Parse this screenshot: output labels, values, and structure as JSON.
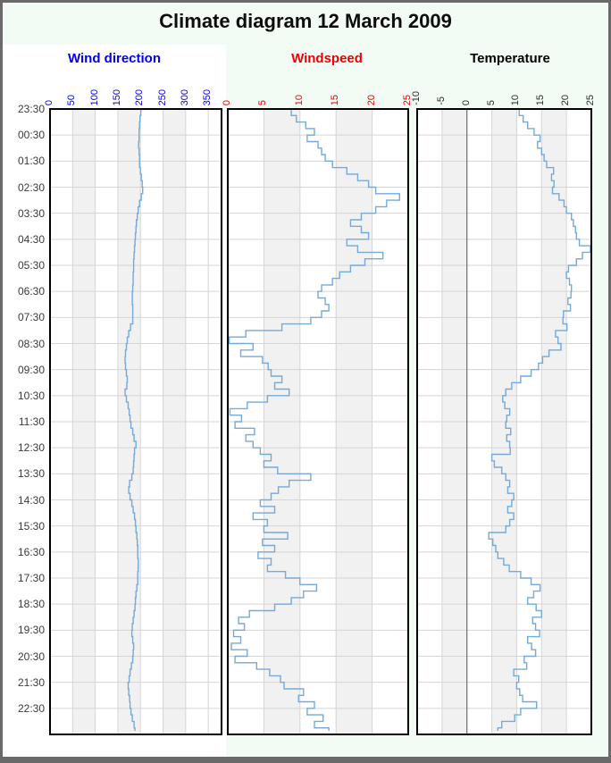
{
  "page": {
    "title": "Climate diagram 12 March 2009",
    "background_color": "#f2fcf5",
    "frame_color": "#6a6a6a"
  },
  "time_axis": {
    "orientation": "vertical-top-to-bottom",
    "tick_labels": [
      "23:30",
      "00:30",
      "01:30",
      "02:30",
      "03:30",
      "04:30",
      "05:30",
      "06:30",
      "07:30",
      "08:30",
      "09:30",
      "10:30",
      "11:30",
      "12:30",
      "13:30",
      "14:30",
      "15:30",
      "16:30",
      "17:30",
      "18:30",
      "19:30",
      "20:30",
      "21:30",
      "22:30"
    ]
  },
  "chart_data": [
    {
      "type": "line",
      "step": true,
      "title": "Wind direction",
      "title_color": "#0000ee",
      "axis_color": "#0000ee",
      "line_color": "#74a9da",
      "x_ticks": [
        0,
        50,
        100,
        150,
        200,
        250,
        300,
        350
      ],
      "xlim": [
        0,
        380
      ],
      "shaded_bands": [
        [
          50,
          100
        ],
        [
          150,
          200
        ],
        [
          250,
          300
        ]
      ],
      "grid": true,
      "start_time": "23:30",
      "sample_interval_minutes": 15,
      "values": [
        201,
        199,
        198,
        197,
        197,
        196,
        197,
        198,
        198,
        200,
        202,
        204,
        205,
        202,
        198,
        195,
        193,
        191,
        190,
        189,
        188,
        187,
        186,
        185,
        185,
        184,
        184,
        183,
        182,
        182,
        183,
        183,
        183,
        178,
        174,
        171,
        169,
        167,
        166,
        167,
        169,
        171,
        170,
        166,
        169,
        173,
        175,
        177,
        179,
        183,
        186,
        190,
        187,
        186,
        185,
        184,
        181,
        176,
        174,
        177,
        181,
        184,
        187,
        189,
        190,
        192,
        193,
        194,
        194,
        195,
        195,
        194,
        194,
        192,
        190,
        189,
        188,
        186,
        184,
        182,
        181,
        183,
        185,
        184,
        183,
        180,
        177,
        175,
        173,
        174,
        176,
        177,
        179,
        182,
        186,
        188
      ]
    },
    {
      "type": "line",
      "step": true,
      "title": "Windspeed",
      "title_color": "#f00000",
      "axis_color": "#f00000",
      "line_color": "#74a9da",
      "x_ticks": [
        0,
        5,
        10,
        15,
        20,
        25
      ],
      "xlim": [
        0,
        25
      ],
      "shaded_bands": [
        [
          5,
          10
        ],
        [
          15,
          20
        ]
      ],
      "grid": true,
      "start_time": "23:30",
      "sample_interval_minutes": 15,
      "values": [
        8.8,
        9.5,
        10.8,
        12.0,
        11.0,
        12.5,
        13.0,
        13.5,
        14.5,
        16.5,
        18.0,
        19.5,
        20.5,
        23.8,
        22.0,
        20.5,
        18.5,
        17.0,
        18.5,
        19.5,
        16.5,
        18.0,
        21.5,
        19.0,
        17.0,
        15.5,
        14.5,
        13.0,
        12.5,
        13.5,
        14.0,
        13.0,
        11.5,
        7.5,
        2.5,
        0.2,
        3.5,
        1.8,
        4.8,
        5.6,
        6.0,
        7.5,
        6.5,
        8.5,
        5.5,
        2.7,
        0.3,
        1.9,
        1.0,
        3.7,
        2.5,
        3.5,
        4.5,
        6.0,
        5.0,
        6.9,
        11.5,
        8.5,
        7.0,
        6.0,
        4.5,
        6.5,
        3.5,
        5.5,
        5.0,
        8.3,
        4.8,
        6.5,
        4.2,
        6.0,
        5.5,
        8.0,
        10.0,
        12.3,
        10.5,
        8.8,
        6.5,
        3.0,
        1.5,
        2.3,
        0.8,
        1.8,
        0.5,
        2.7,
        1.0,
        4.0,
        5.8,
        7.3,
        7.8,
        10.5,
        9.8,
        12.0,
        11.0,
        13.2,
        12.0,
        14.0
      ]
    },
    {
      "type": "line",
      "step": true,
      "title": "Temperature",
      "title_color": "#000000",
      "axis_color": "#2b2b2b",
      "line_color": "#74a9da",
      "x_ticks": [
        -10,
        -5,
        0,
        5,
        10,
        15,
        20,
        25
      ],
      "xlim": [
        -10,
        25
      ],
      "shaded_bands": [
        [
          -5,
          0
        ],
        [
          5,
          10
        ],
        [
          15,
          20
        ]
      ],
      "zero_line": 0,
      "grid": true,
      "start_time": "23:30",
      "sample_interval_minutes": 15,
      "values": [
        10.5,
        11.3,
        12.2,
        13.5,
        14.7,
        14.2,
        15.0,
        15.5,
        16.0,
        17.4,
        17.0,
        17.5,
        17.2,
        18.5,
        19.5,
        20.0,
        21.0,
        21.4,
        21.8,
        22.0,
        22.6,
        24.8,
        23.2,
        22.0,
        20.4,
        20.0,
        20.6,
        21.0,
        20.9,
        20.3,
        20.8,
        19.4,
        19.3,
        20.1,
        17.8,
        18.3,
        18.9,
        16.5,
        15.2,
        14.4,
        12.9,
        10.8,
        9.0,
        7.8,
        7.2,
        7.6,
        8.6,
        8.0,
        7.8,
        8.8,
        8.0,
        8.6,
        8.7,
        5.0,
        5.5,
        7.0,
        7.8,
        8.6,
        8.2,
        9.4,
        9.0,
        8.2,
        9.4,
        8.6,
        7.8,
        4.4,
        5.2,
        5.8,
        6.2,
        7.4,
        8.5,
        10.8,
        12.9,
        14.7,
        13.4,
        12.2,
        13.9,
        15.0,
        13.2,
        13.8,
        14.6,
        12.2,
        13.0,
        13.8,
        11.5,
        12.0,
        9.4,
        10.4,
        10.0,
        10.6,
        11.2,
        14.0,
        10.8,
        9.6,
        7.0,
        6.2
      ]
    }
  ],
  "style": {
    "panel_background": "#ffffff",
    "band_color": "#f1f1f2",
    "gridline_color": "#d5d5d5",
    "panel_border_color": "#000000",
    "zero_line_color": "#6e6e6e",
    "time_label_color": "#3a3a3a"
  }
}
